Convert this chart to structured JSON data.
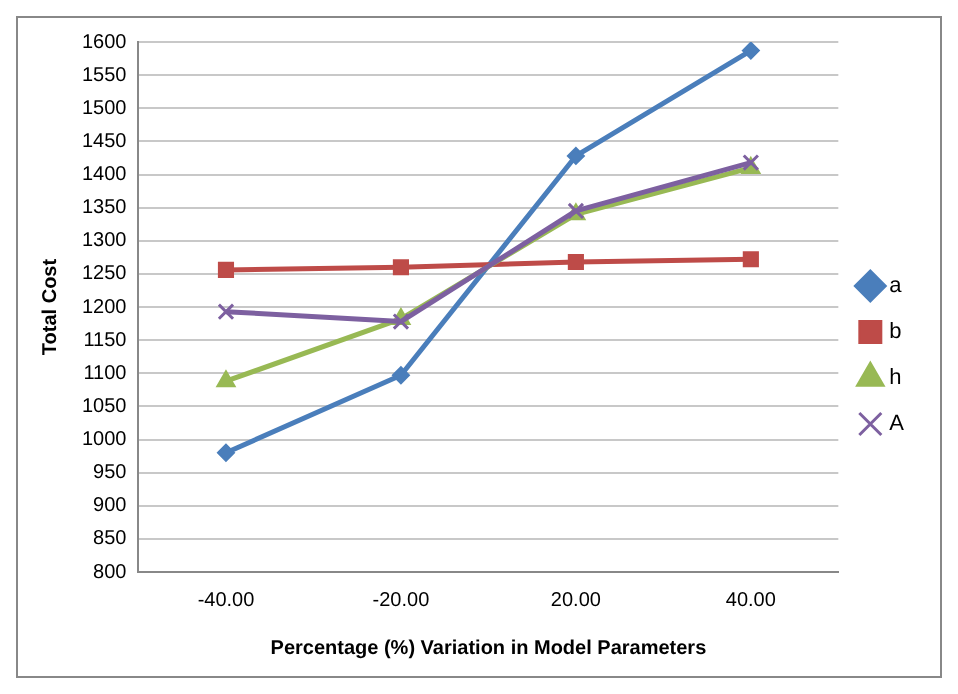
{
  "chart_data": {
    "type": "line",
    "xlabel": "Percentage (%) Variation in Model Parameters",
    "ylabel": "Total Cost",
    "categories": [
      "-40.00",
      "-20.00",
      "20.00",
      "40.00"
    ],
    "series": [
      {
        "name": "a",
        "color": "#4a7ebb",
        "marker": "diamond",
        "values": [
          980,
          1097,
          1428,
          1587
        ]
      },
      {
        "name": "b",
        "color": "#be4b48",
        "marker": "square",
        "values": [
          1256,
          1260,
          1268,
          1272
        ]
      },
      {
        "name": "h",
        "color": "#98b954",
        "marker": "triangle",
        "values": [
          1088,
          1182,
          1340,
          1410
        ]
      },
      {
        "name": "A",
        "color": "#7d60a0",
        "marker": "cross",
        "values": [
          1193,
          1178,
          1345,
          1418
        ]
      }
    ],
    "ylim": [
      800,
      1600
    ],
    "yticks": [
      800,
      850,
      900,
      950,
      1000,
      1050,
      1100,
      1150,
      1200,
      1250,
      1300,
      1350,
      1400,
      1450,
      1500,
      1550,
      1600
    ],
    "grid": "y",
    "legend": "right"
  }
}
